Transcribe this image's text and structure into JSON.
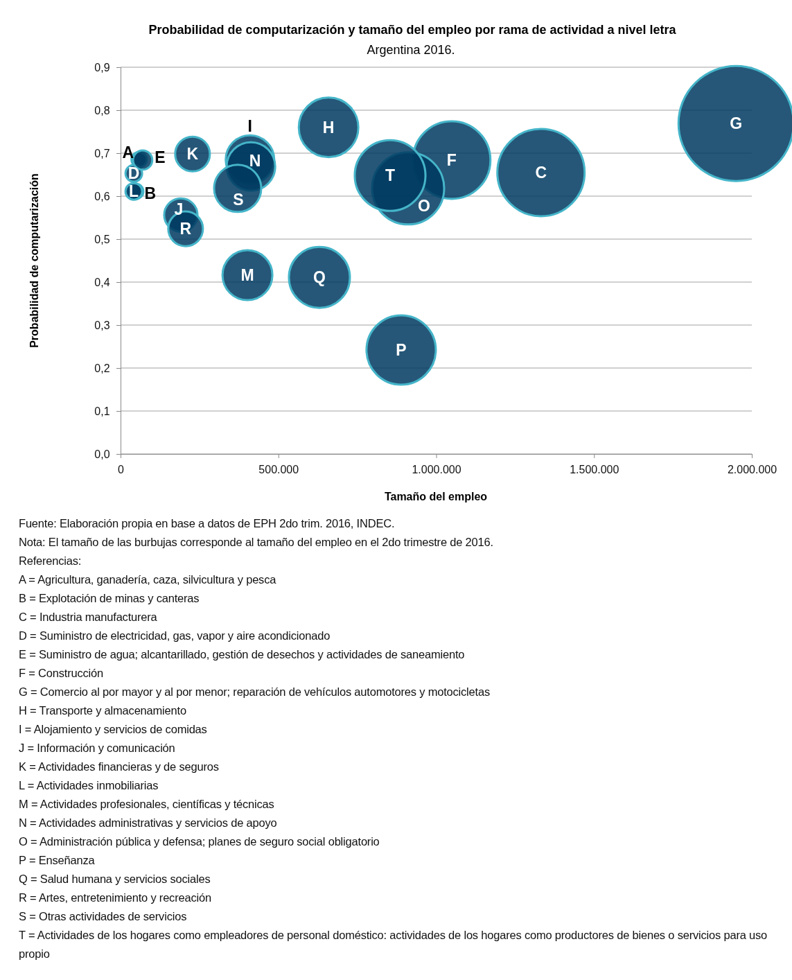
{
  "chart_data": {
    "type": "bubble",
    "title": "Probabilidad de computarización y tamaño del empleo por rama de actividad a nivel letra",
    "subtitle": "Argentina 2016.",
    "xlabel": "Tamaño del empleo",
    "ylabel": "Probabilidad  de computarización",
    "xlim": [
      0,
      2000000
    ],
    "ylim": [
      0,
      0.9
    ],
    "xticks": [
      {
        "value": 0,
        "label": "0"
      },
      {
        "value": 500000,
        "label": "500.000"
      },
      {
        "value": 1000000,
        "label": "1.000.000"
      },
      {
        "value": 1500000,
        "label": "1.500.000"
      },
      {
        "value": 2000000,
        "label": "2.000.000"
      }
    ],
    "yticks": [
      {
        "value": 0,
        "label": "0,0"
      },
      {
        "value": 0.1,
        "label": "0,1"
      },
      {
        "value": 0.2,
        "label": "0,2"
      },
      {
        "value": 0.3,
        "label": "0,3"
      },
      {
        "value": 0.4,
        "label": "0,4"
      },
      {
        "value": 0.5,
        "label": "0,5"
      },
      {
        "value": 0.6,
        "label": "0,6"
      },
      {
        "value": 0.7,
        "label": "0,7"
      },
      {
        "value": 0.8,
        "label": "0,8"
      },
      {
        "value": 0.9,
        "label": "0,9"
      }
    ],
    "grid": "y",
    "series": [
      {
        "color": "#003a60",
        "x": [
          59000,
          48000,
          1332000,
          42000,
          70000,
          1049000,
          1950000,
          659000,
          410000,
          191000,
          228000,
          42000,
          402000,
          413000,
          911000,
          889000,
          630000,
          206000,
          371000,
          854000
        ],
        "values": [
          0.685,
          0.611,
          0.655,
          0.653,
          0.684,
          0.684,
          0.769,
          0.76,
          0.685,
          0.556,
          0.698,
          0.611,
          0.416,
          0.669,
          0.618,
          0.242,
          0.411,
          0.524,
          0.618,
          0.648
        ],
        "sizes": [
          0.018,
          0.018,
          0.576,
          0.021,
          0.028,
          0.455,
          1,
          0.268,
          0.178,
          0.084,
          0.091,
          0.021,
          0.188,
          0.178,
          0.393,
          0.363,
          0.281,
          0.091,
          0.168,
          0.378
        ]
      }
    ],
    "annotations": [
      {
        "text": "A",
        "x": 59000,
        "y": 0.685
      },
      {
        "text": "B",
        "x": 48000,
        "y": 0.611
      },
      {
        "text": "C",
        "x": 1332000,
        "y": 0.655
      },
      {
        "text": "D",
        "x": 42000,
        "y": 0.653
      },
      {
        "text": "E",
        "x": 70000,
        "y": 0.684
      },
      {
        "text": "F",
        "x": 1049000,
        "y": 0.684
      },
      {
        "text": "G",
        "x": 1950000,
        "y": 0.769
      },
      {
        "text": "H",
        "x": 659000,
        "y": 0.76
      },
      {
        "text": "I",
        "x": 410000,
        "y": 0.685
      },
      {
        "text": "J",
        "x": 191000,
        "y": 0.556
      },
      {
        "text": "K",
        "x": 228000,
        "y": 0.698
      },
      {
        "text": "L",
        "x": 42000,
        "y": 0.611
      },
      {
        "text": "M",
        "x": 402000,
        "y": 0.416
      },
      {
        "text": "N",
        "x": 413000,
        "y": 0.669
      },
      {
        "text": "O",
        "x": 911000,
        "y": 0.618
      },
      {
        "text": "P",
        "x": 889000,
        "y": 0.242
      },
      {
        "text": "Q",
        "x": 630000,
        "y": 0.411
      },
      {
        "text": "R",
        "x": 206000,
        "y": 0.524
      },
      {
        "text": "S",
        "x": 371000,
        "y": 0.618
      },
      {
        "text": "T",
        "x": 854000,
        "y": 0.648
      },
      "Fuente: Elaboración propia en base a datos de EPH 2do trim. 2016, INDEC.",
      "Nota: El tamaño de las burbujas corresponde al tamaño del empleo en el 2do trimestre de 2016.",
      "Referencias:",
      "A = Agricultura, ganadería, caza, silvicultura y pesca",
      "B = Explotación de minas y canteras",
      "C = Industria manufacturera",
      "D = Suministro de electricidad, gas, vapor y aire acondicionado",
      "E = Suministro de agua; alcantarillado, gestión de desechos y actividades de saneamiento",
      "F = Construcción",
      "G = Comercio al por mayor y al por menor; reparación de vehículos automotores y motocicletas",
      "H = Transporte y almacenamiento",
      "I = Alojamiento y servicios de comidas",
      "J = Información y comunicación",
      "K = Actividades financieras y de seguros",
      "L = Actividades inmobiliarias",
      "M = Actividades profesionales, científicas y técnicas",
      "N = Actividades administrativas y servicios de apoyo",
      "O = Administración pública y defensa; planes de seguro social obligatorio",
      "P = Enseñanza",
      "Q = Salud humana y servicios sociales",
      "R = Artes, entretenimiento y recreación",
      "S = Otras actividades de servicios",
      "T = Actividades de los hogares como empleadores de personal doméstico: actividades de los hogares como productores de bienes o servicios para uso propio"
    ]
  }
}
